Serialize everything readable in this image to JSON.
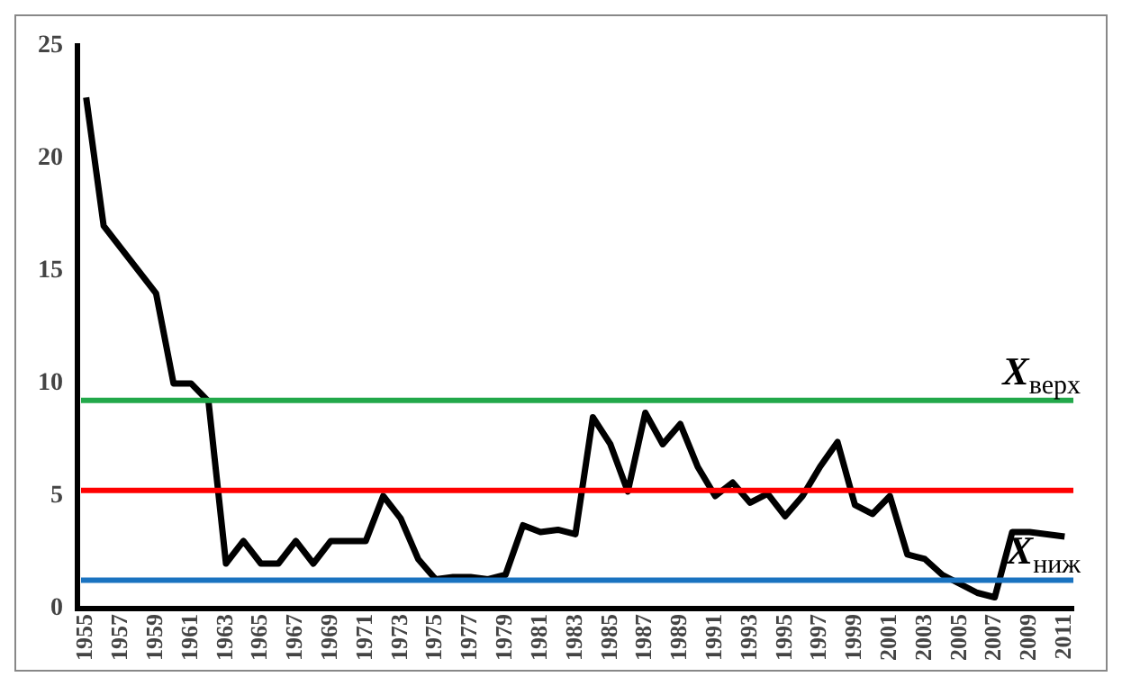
{
  "chart_data": {
    "type": "line",
    "categories": [
      "1955",
      null,
      "1957",
      null,
      "1959",
      null,
      "1961",
      null,
      "1963",
      null,
      "1965",
      null,
      "1967",
      null,
      "1969",
      null,
      "1971",
      null,
      "1973",
      null,
      "1975",
      null,
      "1977",
      null,
      "1979",
      null,
      "1981",
      null,
      "1983",
      null,
      "1985",
      null,
      "1987",
      null,
      "1989",
      null,
      "1991",
      null,
      "1993",
      null,
      "1995",
      null,
      "1997",
      null,
      "1999",
      null,
      "2001",
      null,
      "2003",
      null,
      "2005",
      null,
      "2007",
      null,
      "2009",
      null,
      "2011"
    ],
    "series": [
      {
        "color": "#000000",
        "values": [
          22.7,
          17.0,
          16.0,
          15.0,
          14.0,
          10.0,
          10.0,
          9.2,
          2.0,
          3.0,
          2.0,
          2.0,
          3.0,
          2.0,
          3.0,
          3.0,
          3.0,
          5.0,
          4.0,
          2.2,
          1.3,
          1.4,
          1.4,
          1.3,
          1.5,
          3.7,
          3.4,
          3.5,
          3.3,
          8.5,
          7.3,
          5.2,
          8.7,
          7.3,
          8.2,
          6.3,
          5.0,
          5.6,
          4.7,
          5.1,
          4.1,
          5.0,
          6.3,
          7.4,
          4.6,
          4.2,
          5.0,
          2.4,
          2.2,
          1.5,
          1.1,
          0.7,
          0.5,
          3.4,
          3.4,
          3.3,
          3.2
        ]
      }
    ],
    "ylim": [
      0,
      25
    ],
    "yticks": [
      0,
      5,
      10,
      15,
      20,
      25
    ],
    "ref_lines": [
      {
        "axis": "y",
        "value": 9.25,
        "label": "X$_{верх}$",
        "color": "#22a84a"
      },
      {
        "axis": "y",
        "value": 5.25,
        "color": "#ff0000"
      },
      {
        "axis": "y",
        "value": 1.26,
        "label": "X$_{ниж}$",
        "color": "#1a73c0"
      }
    ],
    "marker": "none",
    "line_style": "solid",
    "grid": false,
    "legend": false
  }
}
